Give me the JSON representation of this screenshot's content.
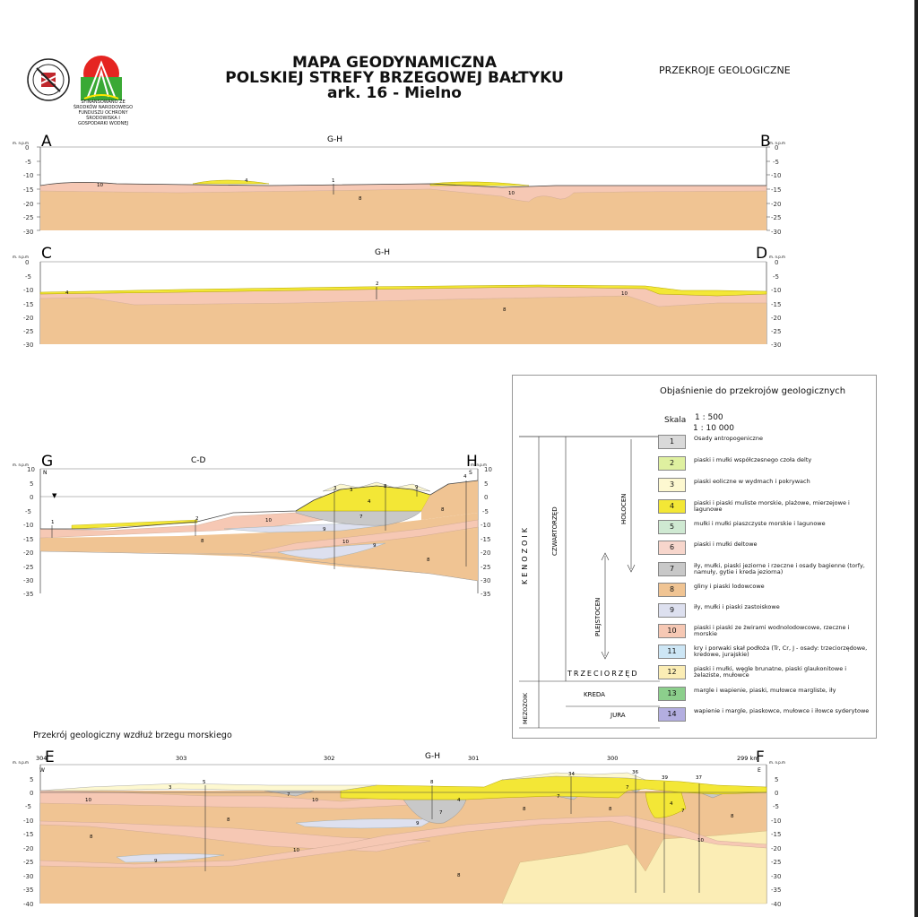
{
  "header": {
    "title_line1": "MAPA GEODYNAMICZNA",
    "title_line2": "POLSKIEJ STREFY BRZEGOWEJ BAŁTYKU",
    "title_line3": "ark. 16 - Mielno",
    "right_title": "PRZEKROJE GEOLOGICZNE",
    "logo_caption": "SFINANSOWANO ZE ŚRODKÓW NARODOWEGO FUNDUSZU OCHRONY ŚRODOWISKA I GOSPODARKI WODNEJ"
  },
  "sections": {
    "ab": {
      "left": "A",
      "right": "B",
      "mid": "G-H",
      "units": "m. n.p.m",
      "ticks": [
        "0",
        "-5",
        "-10",
        "-15",
        "-20",
        "-25",
        "-30"
      ],
      "labels": {
        "u10": "10",
        "u4": "4",
        "u1": "1",
        "u8": "8",
        "u10b": "10"
      }
    },
    "cd": {
      "left": "C",
      "right": "D",
      "mid": "G-H",
      "units": "m. n.p.m",
      "ticks": [
        "0",
        "-5",
        "-10",
        "-15",
        "-20",
        "-25",
        "-30"
      ],
      "labels": {
        "u4": "4",
        "u2": "2",
        "u10": "10",
        "u8": "8"
      }
    },
    "gh": {
      "left": "G",
      "right": "H",
      "mid": "C-D",
      "units": "m. n.p.m",
      "dir_left": "N",
      "dir_right": "S",
      "ticks": [
        "10",
        "5",
        "0",
        "-5",
        "-10",
        "-15",
        "-20",
        "-25",
        "-30",
        "-35"
      ],
      "labels": {
        "u1": "1",
        "u2": "2",
        "u8a": "8",
        "u10a": "10",
        "u9a": "9",
        "u3": "3",
        "u3b": "3",
        "u4": "4",
        "u7": "7",
        "u8b": "8",
        "u9b": "9",
        "u8c": "8",
        "u4s": "4",
        "u10b": "10",
        "u9c": "9",
        "u8d": "8"
      }
    },
    "ef": {
      "left": "E",
      "right": "F",
      "mid": "G-H",
      "units": "m. n.p.m",
      "dir_left": "W",
      "dir_right": "E",
      "ticks": [
        "5",
        "0",
        "-5",
        "-10",
        "-15",
        "-20",
        "-25",
        "-30",
        "-35",
        "-40"
      ],
      "km": [
        "304",
        "303",
        "302",
        "301",
        "300",
        "299 km"
      ],
      "wells": [
        "5",
        "8",
        "34",
        "36",
        "39",
        "37"
      ],
      "labels": {
        "u3": "3",
        "u10a": "10",
        "u8a": "8",
        "u8b": "8",
        "u7a": "7",
        "u10b": "10",
        "u10c": "10",
        "u9": "9",
        "u4": "4",
        "u7b": "7",
        "u9b": "9",
        "u8c": "8",
        "u7c": "7",
        "u8d": "8",
        "u4b": "4",
        "u7d": "7",
        "u8e": "8",
        "u10d": "10",
        "u8f": "8",
        "u7e": "7"
      }
    }
  },
  "legend": {
    "title": "Objaśnienie do przekrojów geologicznych",
    "skala_label": "Skala",
    "skala_v": "1 : 500",
    "skala_h": "1 : 10 000",
    "kenozoik": "KENOZOIK",
    "czwartorzed": "CZWARTORZĘD",
    "holocen": "HOLOCEN",
    "plejstocen": "PLEJSTOCEN",
    "trzeciorzed": "TRZECIORZĘD",
    "mezozoik": "MEZOZOIK",
    "kreda": "KREDA",
    "jura": "JURA",
    "items": [
      {
        "num": "1",
        "text": "Osady antropogeniczne",
        "color": "#d9d9d9"
      },
      {
        "num": "2",
        "text": "piaski i mułki współczesnego czoła delty",
        "color": "#dff0a0"
      },
      {
        "num": "3",
        "text": "piaski eoliczne w wydmach i pokrywach",
        "color": "#fdf8d0"
      },
      {
        "num": "4",
        "text": "piaski i piaski muliste morskie, plażowe, mierzejowe i lagunowe",
        "color": "#f3e736"
      },
      {
        "num": "5",
        "text": "mułki i mułki piaszczyste morskie i lagunowe",
        "color": "#cfe9d2"
      },
      {
        "num": "6",
        "text": "piaski i mułki deltowe",
        "color": "#f7d6cc"
      },
      {
        "num": "7",
        "text": "iły, mułki, piaski jeziorne i rzeczne i osady bagienne (torfy, namuły, gytie i kreda jeziorna)",
        "color": "#c8c8c8"
      },
      {
        "num": "8",
        "text": "gliny i piaski lodowcowe",
        "color": "#f0c493"
      },
      {
        "num": "9",
        "text": "iły, mułki i piaski zastoiskowe",
        "color": "#dde0ef"
      },
      {
        "num": "10",
        "text": "piaski i piaski ze żwirami wodnolodowcowe, rzeczne i morskie",
        "color": "#f6c8b4"
      },
      {
        "num": "11",
        "text": "kry i porwaki skał podłoża (Tr, Cr, J - osady: trzeciorzędowe, kredowe, jurajskie)",
        "color": "#cde6f5"
      },
      {
        "num": "12",
        "text": "piaski i mułki, węgle brunatne, piaski glaukonitowe i żelaziste, mułowce",
        "color": "#fbedb5"
      },
      {
        "num": "13",
        "text": "margle i wapienie, piaski, mułowce margliste, iły",
        "color": "#8ccf8c"
      },
      {
        "num": "14",
        "text": "wapienie i margle, piaskowce, mułowce i iłowce syderytowe",
        "color": "#b3aee0"
      }
    ]
  },
  "coast_title": "Przekrój geologiczny wzdłuż brzegu morskiego",
  "colors": {
    "till": "#f0c493",
    "fluvio": "#f6c8b4",
    "marine": "#f3e736",
    "lake": "#c8c8c8",
    "glacilake": "#dde0ef",
    "tertiary": "#fbedb5",
    "delta": "#dff0a0"
  }
}
